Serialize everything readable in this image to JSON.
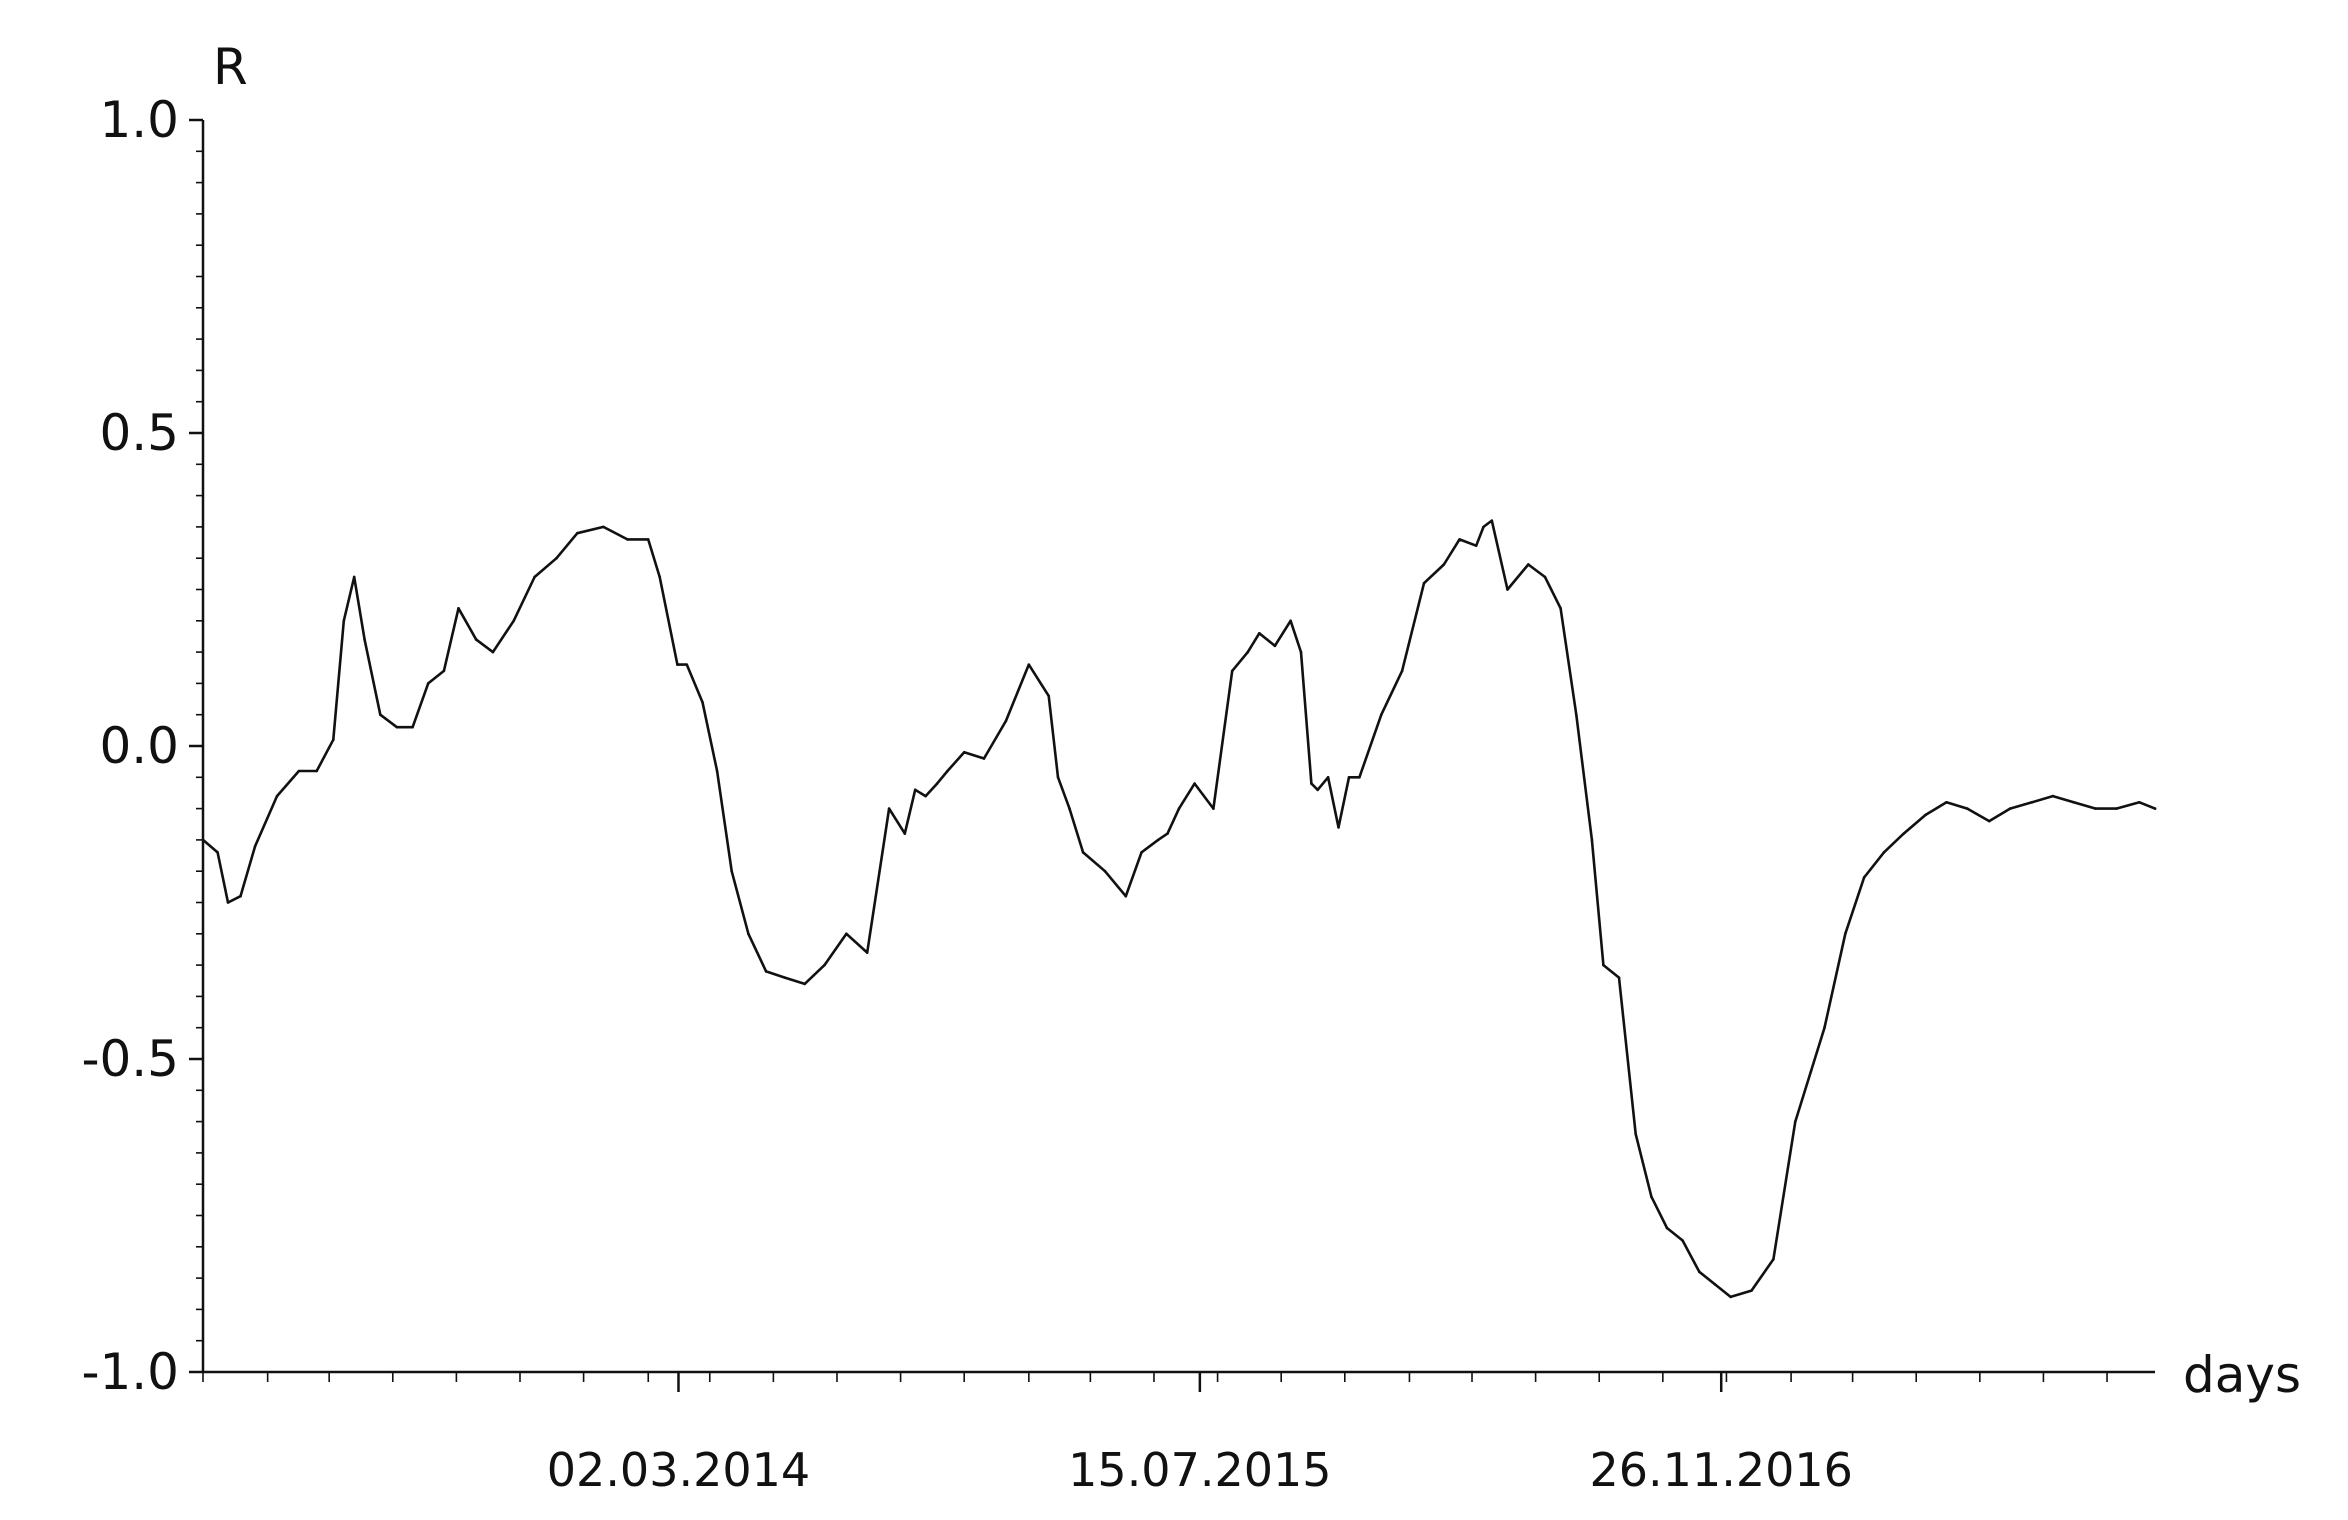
{
  "chart_data": {
    "type": "line",
    "title": "",
    "ylabel": "R",
    "xlabel": "days",
    "ylim": [
      -1.0,
      1.0
    ],
    "y_ticks": [
      1.0,
      0.5,
      0.0,
      -0.5,
      -1.0
    ],
    "y_tick_labels": [
      "1.0",
      "0.5",
      "0.0",
      "-0.5",
      "-1.0"
    ],
    "x_range": [
      "2012-12-01",
      "2018-01-16"
    ],
    "x_tick_labels": [
      {
        "date": "2014-03-02",
        "label": "02.03.2014"
      },
      {
        "date": "2015-07-15",
        "label": "15.07.2015"
      },
      {
        "date": "2016-11-26",
        "label": "26.11.2016"
      }
    ],
    "grid": false,
    "line_color": "#111111",
    "series": [
      {
        "x": [
          "2012-12-01",
          "2012-12-15",
          "2012-12-25",
          "2013-01-06",
          "2013-01-20",
          "2013-02-10",
          "2013-03-03",
          "2013-03-20",
          "2013-04-05",
          "2013-04-15",
          "2013-04-25",
          "2013-05-05",
          "2013-05-20",
          "2013-06-05",
          "2013-06-20",
          "2013-07-05",
          "2013-07-20",
          "2013-08-03",
          "2013-08-20",
          "2013-09-05",
          "2013-09-25",
          "2013-10-15",
          "2013-11-05",
          "2013-11-25",
          "2013-12-20",
          "2014-01-12",
          "2014-02-01",
          "2014-02-12",
          "2014-03-01",
          "2014-03-10",
          "2014-03-25",
          "2014-04-08",
          "2014-04-22",
          "2014-05-08",
          "2014-05-25",
          "2014-06-12",
          "2014-07-01",
          "2014-07-20",
          "2014-08-10",
          "2014-08-30",
          "2014-09-20",
          "2014-10-05",
          "2014-10-15",
          "2014-10-25",
          "2014-11-05",
          "2014-11-15",
          "2014-12-01",
          "2014-12-20",
          "2015-01-10",
          "2015-02-01",
          "2015-02-20",
          "2015-03-01",
          "2015-03-12",
          "2015-03-25",
          "2015-04-15",
          "2015-05-05",
          "2015-05-20",
          "2015-06-05",
          "2015-06-14",
          "2015-06-25",
          "2015-07-10",
          "2015-07-28",
          "2015-08-15",
          "2015-08-30",
          "2015-09-10",
          "2015-09-25",
          "2015-10-10",
          "2015-10-20",
          "2015-10-30",
          "2015-11-05",
          "2015-11-15",
          "2015-11-25",
          "2015-12-05",
          "2015-12-15",
          "2016-01-05",
          "2016-01-25",
          "2016-02-15",
          "2016-03-05",
          "2016-03-20",
          "2016-04-05",
          "2016-04-12",
          "2016-04-20",
          "2016-05-05",
          "2016-05-25",
          "2016-06-10",
          "2016-06-25",
          "2016-07-10",
          "2016-07-25",
          "2016-08-05",
          "2016-08-20",
          "2016-09-05",
          "2016-09-20",
          "2016-10-05",
          "2016-10-20",
          "2016-11-05",
          "2016-11-20",
          "2016-12-05",
          "2016-12-25",
          "2017-01-15",
          "2017-02-05",
          "2017-02-20",
          "2017-03-05",
          "2017-03-25",
          "2017-04-12",
          "2017-05-01",
          "2017-05-20",
          "2017-06-10",
          "2017-06-30",
          "2017-07-20",
          "2017-08-10",
          "2017-08-30",
          "2017-09-20",
          "2017-10-10",
          "2017-10-30",
          "2017-11-20",
          "2017-12-10",
          "2018-01-01",
          "2018-01-16"
        ],
        "y": [
          -0.15,
          -0.17,
          -0.25,
          -0.24,
          -0.16,
          -0.08,
          -0.04,
          -0.04,
          0.01,
          0.2,
          0.27,
          0.17,
          0.05,
          0.03,
          0.03,
          0.1,
          0.12,
          0.22,
          0.17,
          0.15,
          0.2,
          0.27,
          0.3,
          0.34,
          0.35,
          0.33,
          0.33,
          0.27,
          0.13,
          0.13,
          0.07,
          -0.04,
          -0.2,
          -0.3,
          -0.36,
          -0.37,
          -0.38,
          -0.35,
          -0.3,
          -0.33,
          -0.1,
          -0.14,
          -0.07,
          -0.08,
          -0.06,
          -0.04,
          -0.01,
          -0.02,
          0.04,
          0.13,
          0.08,
          -0.05,
          -0.1,
          -0.17,
          -0.2,
          -0.24,
          -0.17,
          -0.15,
          -0.14,
          -0.1,
          -0.06,
          -0.1,
          0.12,
          0.15,
          0.18,
          0.16,
          0.2,
          0.15,
          -0.06,
          -0.07,
          -0.05,
          -0.13,
          -0.05,
          -0.05,
          0.05,
          0.12,
          0.26,
          0.29,
          0.33,
          0.32,
          0.35,
          0.36,
          0.25,
          0.29,
          0.27,
          0.22,
          0.05,
          -0.15,
          -0.35,
          -0.37,
          -0.62,
          -0.72,
          -0.77,
          -0.79,
          -0.84,
          -0.86,
          -0.88,
          -0.87,
          -0.82,
          -0.6,
          -0.52,
          -0.45,
          -0.3,
          -0.21,
          -0.17,
          -0.14,
          -0.11,
          -0.09,
          -0.1,
          -0.12,
          -0.1,
          -0.09,
          -0.08,
          -0.09,
          -0.1,
          -0.1,
          -0.09,
          -0.1
        ]
      }
    ]
  }
}
